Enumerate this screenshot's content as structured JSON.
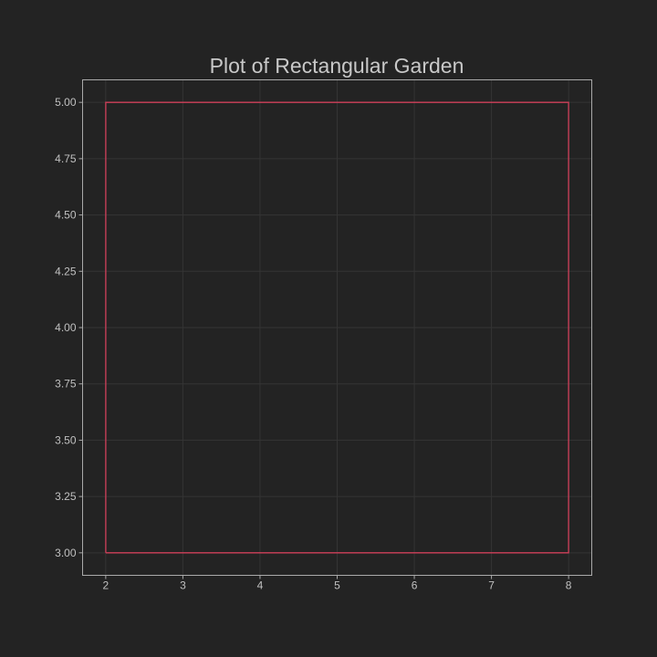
{
  "chart_data": {
    "type": "line",
    "title": "Plot of Rectangular Garden",
    "xlabel": "",
    "ylabel": "",
    "xlim": [
      1.7,
      8.3
    ],
    "ylim": [
      2.9,
      5.1
    ],
    "x_ticks": [
      2,
      3,
      4,
      5,
      6,
      7,
      8
    ],
    "x_tick_labels": [
      "2",
      "3",
      "4",
      "5",
      "6",
      "7",
      "8"
    ],
    "y_ticks": [
      3.0,
      3.25,
      3.5,
      3.75,
      4.0,
      4.25,
      4.5,
      4.75,
      5.0
    ],
    "y_tick_labels": [
      "3.00",
      "3.25",
      "3.50",
      "3.75",
      "4.00",
      "4.25",
      "4.50",
      "4.75",
      "5.00"
    ],
    "grid": true,
    "series": [
      {
        "color": "#d0405a",
        "x": [
          2,
          8,
          8,
          2,
          2
        ],
        "y": [
          3,
          3,
          5,
          5,
          3
        ]
      }
    ]
  },
  "colors": {
    "background": "#232323",
    "grid": "#343434",
    "frame": "#a9a9a9",
    "text": "#c0c0c0"
  }
}
